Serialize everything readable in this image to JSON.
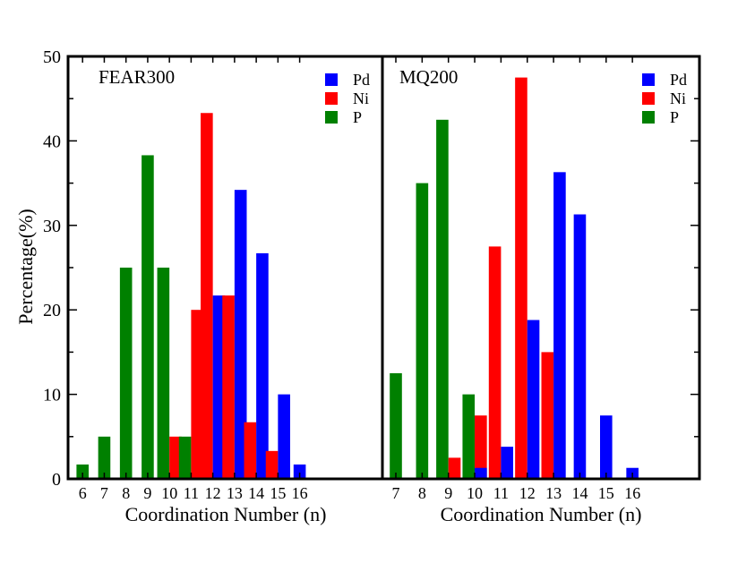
{
  "chart_data": [
    {
      "type": "bar",
      "panel_label": "FEAR300",
      "label_color": "#ff00ff",
      "xlabel": "Coordination Number (n)",
      "ylabel": "Percentage(%)",
      "ylim": [
        0,
        50
      ],
      "yticks": [
        "0",
        "10",
        "20",
        "30",
        "40",
        "50"
      ],
      "categories": [
        "6",
        "7",
        "8",
        "9",
        "10",
        "11",
        "12",
        "13",
        "14",
        "15",
        "16"
      ],
      "legend_position": "top-right",
      "series": [
        {
          "name": "Pd",
          "color": "#0000ff",
          "values": [
            0,
            0,
            0,
            0,
            0,
            0,
            21.7,
            34.2,
            26.7,
            10.0,
            1.7
          ]
        },
        {
          "name": "Ni",
          "color": "#ff0000",
          "values": [
            0,
            0,
            0,
            0,
            5.0,
            20.0,
            43.3,
            21.7,
            6.7,
            3.3,
            0
          ]
        },
        {
          "name": "P",
          "color": "#008000",
          "values": [
            1.7,
            5.0,
            25.0,
            38.3,
            25.0,
            5.0,
            0,
            0,
            0,
            0,
            0
          ]
        }
      ]
    },
    {
      "type": "bar",
      "panel_label": "MQ200",
      "label_color": "#ff00ff",
      "xlabel": "Coordination Number (n)",
      "ylabel": "",
      "ylim": [
        0,
        50
      ],
      "categories": [
        "7",
        "8",
        "9",
        "10",
        "11",
        "12",
        "13",
        "14",
        "15",
        "16"
      ],
      "legend_position": "top-right",
      "series": [
        {
          "name": "Pd",
          "color": "#0000ff",
          "values": [
            0,
            0,
            0,
            1.3,
            3.8,
            18.8,
            36.3,
            31.3,
            7.5,
            1.3
          ]
        },
        {
          "name": "Ni",
          "color": "#ff0000",
          "values": [
            0,
            0,
            2.5,
            7.5,
            27.5,
            47.5,
            15.0,
            0,
            0,
            0
          ]
        },
        {
          "name": "P",
          "color": "#008000",
          "values": [
            12.5,
            35.0,
            42.5,
            10.0,
            0,
            0,
            0,
            0,
            0,
            0
          ]
        }
      ]
    }
  ]
}
